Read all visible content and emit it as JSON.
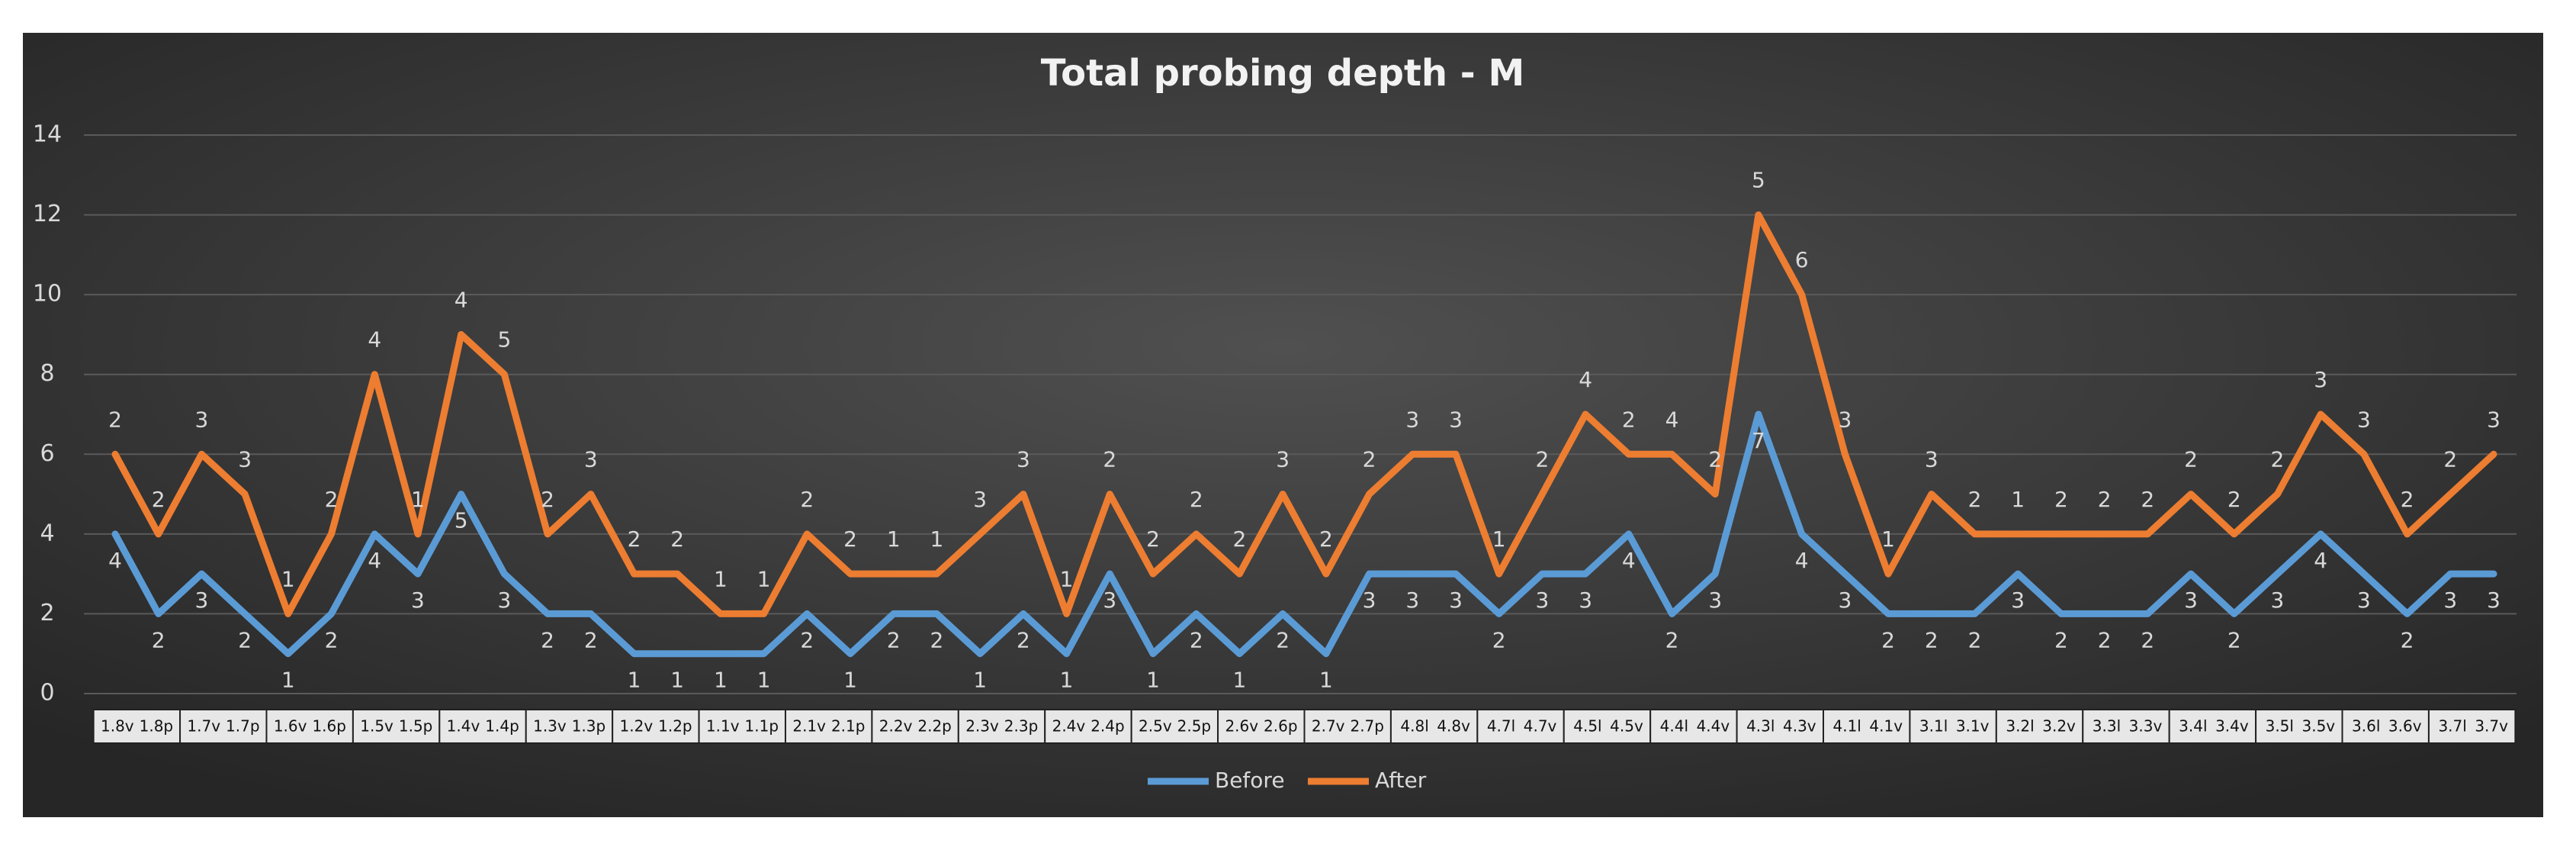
{
  "chart_data": {
    "type": "line",
    "stacked": true,
    "title": "Total probing depth - M",
    "categories": [
      "1.8v",
      "1.8p",
      "1.7v",
      "1.7p",
      "1.6v",
      "1.6p",
      "1.5v",
      "1.5p",
      "1.4v",
      "1.4p",
      "1.3v",
      "1.3p",
      "1.2v",
      "1.2p",
      "1.1v",
      "1.1p",
      "2.1v",
      "2.1p",
      "2.2v",
      "2.2p",
      "2.3v",
      "2.3p",
      "2.4v",
      "2.4p",
      "2.5v",
      "2.5p",
      "2.6v",
      "2.6p",
      "2.7v",
      "2.7p",
      "4.8l",
      "4.8v",
      "4.7l",
      "4.7v",
      "4.5l",
      "4.5v",
      "4.4l",
      "4.4v",
      "4.3l",
      "4.3v",
      "4.1l",
      "4.1v",
      "3.1l",
      "3.1v",
      "3.2l",
      "3.2v",
      "3.3l",
      "3.3v",
      "3.4l",
      "3.4v",
      "3.5l",
      "3.5v",
      "3.6l",
      "3.6v",
      "3.7l",
      "3.7v"
    ],
    "series": [
      {
        "name": "Before",
        "color": "#5b9bd5",
        "values": [
          4,
          2,
          3,
          2,
          1,
          2,
          4,
          3,
          5,
          3,
          2,
          2,
          1,
          1,
          1,
          1,
          2,
          1,
          2,
          2,
          1,
          2,
          1,
          3,
          1,
          2,
          1,
          2,
          1,
          3,
          3,
          3,
          2,
          3,
          3,
          4,
          2,
          3,
          7,
          4,
          3,
          2,
          2,
          2,
          3,
          2,
          2,
          2,
          3,
          2,
          3,
          4,
          3,
          2,
          3,
          3
        ]
      },
      {
        "name": "After",
        "color": "#ed7d31",
        "values": [
          2,
          2,
          3,
          3,
          1,
          2,
          4,
          1,
          4,
          5,
          2,
          3,
          2,
          2,
          1,
          1,
          2,
          2,
          1,
          1,
          3,
          3,
          1,
          2,
          2,
          2,
          2,
          3,
          2,
          2,
          3,
          3,
          1,
          2,
          4,
          2,
          4,
          2,
          5,
          6,
          3,
          1,
          3,
          2,
          1,
          2,
          2,
          2,
          2,
          2,
          2,
          3,
          3,
          2,
          2,
          3
        ]
      }
    ],
    "ylim": [
      0,
      14
    ],
    "yticks": [
      0,
      2,
      4,
      6,
      8,
      10,
      12,
      14
    ],
    "grid": true,
    "legend": "bottom"
  }
}
